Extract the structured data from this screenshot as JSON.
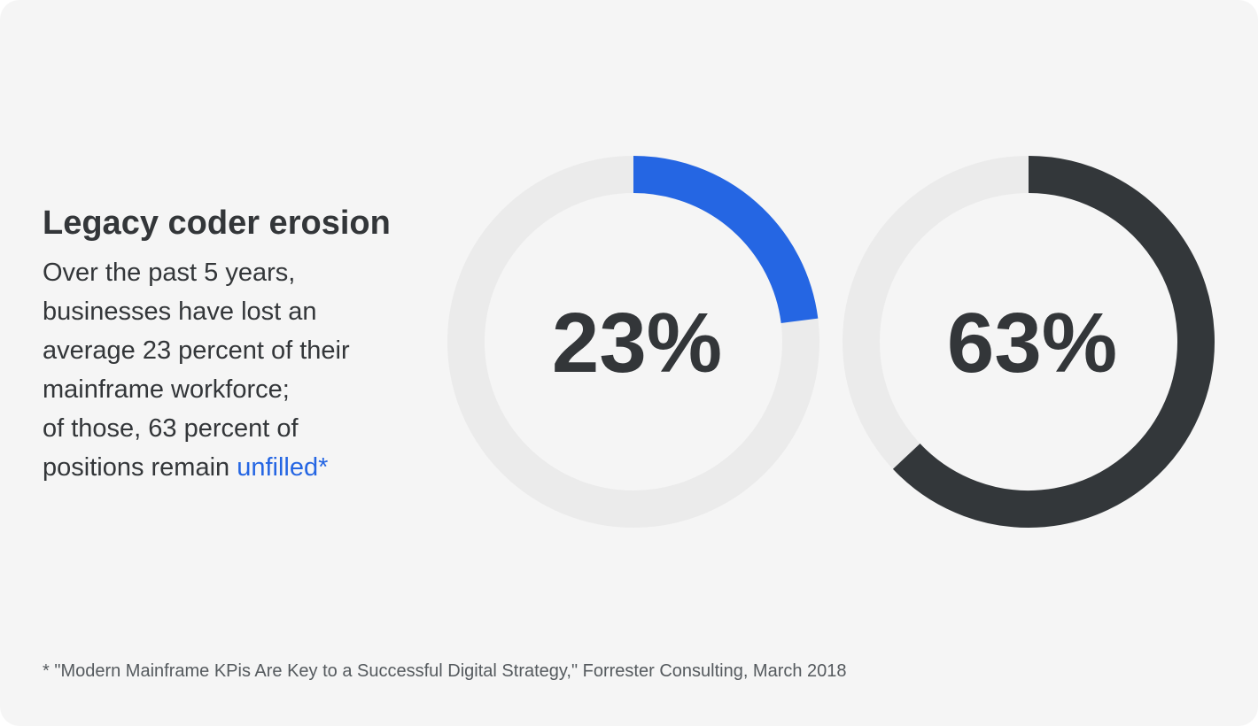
{
  "text": {
    "title": "Legacy coder erosion",
    "body_lines": [
      "Over the past 5 years,",
      "businesses have lost an",
      "average 23 percent of their",
      "mainframe workforce;",
      "of those, 63 percent of",
      "positions remain "
    ],
    "body_highlight": "unfilled*",
    "footnote": "* \"Modern Mainframe KPis Are Key to a Successful Digital Strategy,\" Forrester Consulting, March 2018"
  },
  "colors": {
    "background": "#f5f5f5",
    "text": "#333639",
    "accent": "#2566e3",
    "track": "#ebebeb",
    "dark_arc": "#33373a"
  },
  "chart_data": [
    {
      "type": "pie",
      "label": "23%",
      "values": [
        23,
        77
      ],
      "colors": [
        "#2566e3",
        "#ebebeb"
      ]
    },
    {
      "type": "pie",
      "label": "63%",
      "values": [
        63,
        37
      ],
      "colors": [
        "#33373a",
        "#ebebeb"
      ]
    }
  ]
}
